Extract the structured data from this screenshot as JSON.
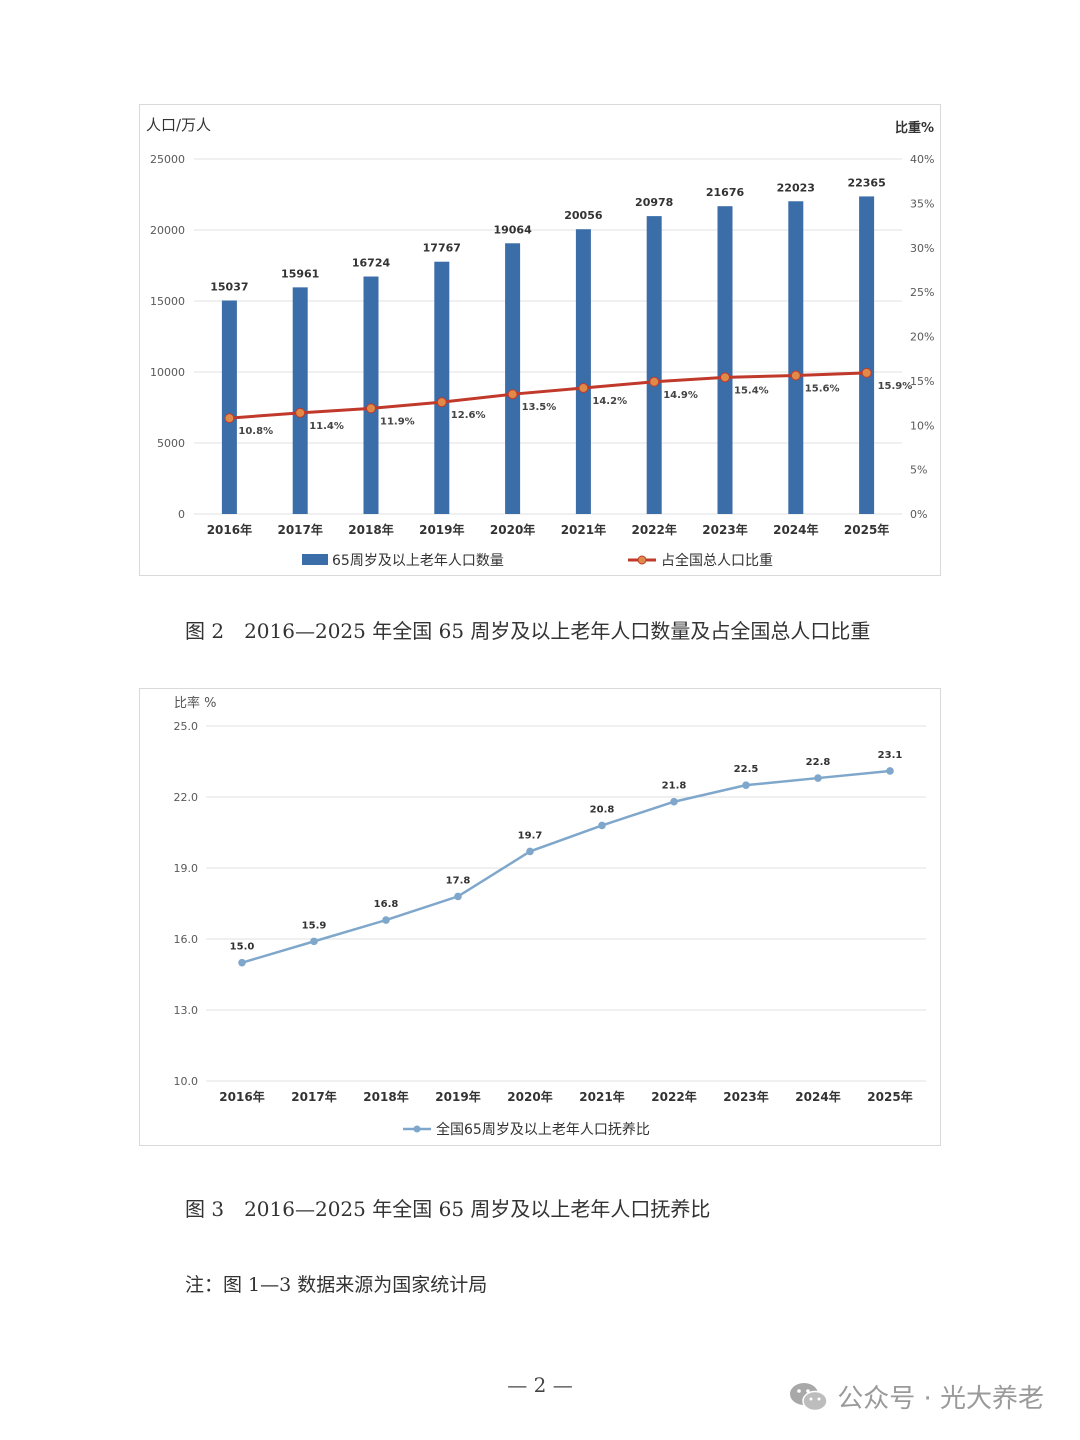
{
  "charts": [
    {
      "left_axis_title": "人口/万人",
      "right_axis_title": "比重%",
      "legend": {
        "bar": "65周岁及以上老年人口数量",
        "line": "占全国总人口比重"
      },
      "caption": "图 2　2016—2025 年全国 65 周岁及以上老年人口数量及占全国总人口比重"
    },
    {
      "axis_title": "比率 %",
      "legend": "全国65周岁及以上老年人口抚养比",
      "caption": "图 3　2016—2025 年全国 65 周岁及以上老年人口抚养比"
    }
  ],
  "note": "注：图 1—3 数据来源为国家统计局",
  "page_number": "— 2 —",
  "watermark": {
    "text": "公众号 · 光大养老",
    "icon": "wechat-icon"
  },
  "colors": {
    "bar": "#3B6EA8",
    "line1": "#C0392B",
    "line1_marker": "#E08A4A",
    "line2": "#7FA7CB",
    "grid": "#E0E0E0"
  },
  "chart_data": [
    {
      "type": "bar",
      "categories": [
        "2016年",
        "2017年",
        "2018年",
        "2019年",
        "2020年",
        "2021年",
        "2022年",
        "2023年",
        "2024年",
        "2025年"
      ],
      "series": [
        {
          "name": "65周岁及以上老年人口数量",
          "axis": "left",
          "values": [
            15037,
            15961,
            16724,
            17767,
            19064,
            20056,
            20978,
            21676,
            22023,
            22365
          ]
        },
        {
          "name": "占全国总人口比重",
          "type": "line",
          "axis": "right",
          "values": [
            10.8,
            11.4,
            11.9,
            12.6,
            13.5,
            14.2,
            14.9,
            15.4,
            15.6,
            15.9
          ],
          "labels": [
            "10.8%",
            "11.4%",
            "11.9%",
            "12.6%",
            "13.5%",
            "14.2%",
            "14.9%",
            "15.4%",
            "15.6%",
            "15.9%"
          ]
        }
      ],
      "ylim": [
        0,
        25000
      ],
      "yticks": [
        0,
        5000,
        10000,
        15000,
        20000,
        25000
      ],
      "y2lim": [
        0,
        40
      ],
      "y2ticks": [
        "0%",
        "5%",
        "10%",
        "15%",
        "20%",
        "25%",
        "30%",
        "35%",
        "40%"
      ],
      "ylabel": "人口/万人",
      "y2label": "比重%",
      "grid": true,
      "legend_position": "bottom"
    },
    {
      "type": "line",
      "categories": [
        "2016年",
        "2017年",
        "2018年",
        "2019年",
        "2020年",
        "2021年",
        "2022年",
        "2023年",
        "2024年",
        "2025年"
      ],
      "series": [
        {
          "name": "全国65周岁及以上老年人口抚养比",
          "values": [
            15.0,
            15.9,
            16.8,
            17.8,
            19.7,
            20.8,
            21.8,
            22.5,
            22.8,
            23.1
          ],
          "labels": [
            "15.0",
            "15.9",
            "16.8",
            "17.8",
            "19.7",
            "20.8",
            "21.8",
            "22.5",
            "22.8",
            "23.1"
          ]
        }
      ],
      "ylim": [
        10,
        25
      ],
      "yticks": [
        "10.0",
        "13.0",
        "16.0",
        "19.0",
        "22.0",
        "25.0"
      ],
      "ylabel": "比率 %",
      "grid": true,
      "legend_position": "bottom"
    }
  ]
}
